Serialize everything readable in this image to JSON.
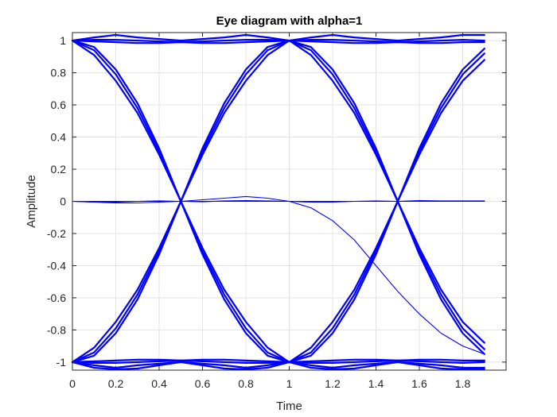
{
  "chart_data": {
    "type": "line",
    "title": "Eye diagram with alpha=1",
    "xlabel": "Time",
    "ylabel": "Amplitude",
    "xlim": [
      0,
      2
    ],
    "ylim": [
      -1.05,
      1.05
    ],
    "grid": true,
    "legend": "none",
    "x_ticks": [
      0,
      0.2,
      0.4,
      0.6,
      0.8,
      1,
      1.2,
      1.4,
      1.6,
      1.8
    ],
    "x_tick_labels": [
      "0",
      "0.2",
      "0.4",
      "0.6",
      "0.8",
      "1",
      "1.2",
      "1.4",
      "1.6",
      "1.8"
    ],
    "y_ticks": [
      -1,
      -0.8,
      -0.6,
      -0.4,
      -0.2,
      0,
      0.2,
      0.4,
      0.6,
      0.8,
      1
    ],
    "y_tick_labels": [
      "-1",
      "-0.8",
      "-0.6",
      "-0.4",
      "-0.2",
      "0",
      "0.2",
      "0.4",
      "0.6",
      "0.8",
      "1"
    ],
    "trace_color": "#0000ff",
    "x": [
      0,
      0.1,
      0.2,
      0.3,
      0.4,
      0.5,
      0.6,
      0.7,
      0.8,
      0.9,
      1.0,
      1.1,
      1.2,
      1.3,
      1.4,
      1.5,
      1.6,
      1.7,
      1.8,
      1.9
    ],
    "series": [
      {
        "values": [
          1,
          0.96,
          0.82,
          0.61,
          0.33,
          0,
          -0.33,
          -0.61,
          -0.82,
          -0.96,
          -1,
          -0.96,
          -0.82,
          -0.61,
          -0.33,
          0,
          0.33,
          0.61,
          0.82,
          0.95
        ]
      },
      {
        "values": [
          1,
          0.94,
          0.79,
          0.58,
          0.31,
          0,
          -0.31,
          -0.58,
          -0.79,
          -0.94,
          -1,
          -0.94,
          -0.79,
          -0.58,
          -0.31,
          0,
          0.31,
          0.58,
          0.79,
          0.92
        ]
      },
      {
        "values": [
          1,
          0.91,
          0.75,
          0.55,
          0.29,
          0,
          -0.29,
          -0.55,
          -0.75,
          -0.91,
          -1,
          -0.91,
          -0.75,
          -0.55,
          -0.29,
          0,
          0.29,
          0.55,
          0.75,
          0.88
        ]
      },
      {
        "values": [
          -1,
          -0.96,
          -0.82,
          -0.61,
          -0.33,
          0,
          0.33,
          0.61,
          0.82,
          0.96,
          1,
          0.96,
          0.82,
          0.61,
          0.33,
          0,
          -0.33,
          -0.61,
          -0.82,
          -0.95
        ]
      },
      {
        "values": [
          -1,
          -0.94,
          -0.79,
          -0.58,
          -0.31,
          0,
          0.31,
          0.58,
          0.79,
          0.94,
          1,
          0.94,
          0.79,
          0.58,
          0.31,
          0,
          -0.31,
          -0.58,
          -0.79,
          -0.92
        ]
      },
      {
        "values": [
          -1,
          -0.91,
          -0.75,
          -0.55,
          -0.29,
          0,
          0.29,
          0.55,
          0.75,
          0.91,
          1,
          0.91,
          0.75,
          0.55,
          0.29,
          0,
          -0.29,
          -0.55,
          -0.75,
          -0.88
        ]
      },
      {
        "values": [
          1,
          1.02,
          1.035,
          1.02,
          1.01,
          1,
          1.01,
          1.02,
          1.035,
          1.02,
          1,
          1.02,
          1.035,
          1.02,
          1.01,
          1,
          1.01,
          1.02,
          1.035,
          1.035
        ]
      },
      {
        "values": [
          1,
          1.005,
          1.005,
          1.0,
          0.995,
          0.99,
          0.995,
          1.0,
          1.005,
          1.005,
          1,
          1.005,
          1.005,
          1.0,
          0.995,
          0.99,
          0.995,
          1.0,
          1.005,
          1.0
        ]
      },
      {
        "values": [
          1,
          0.995,
          0.99,
          0.985,
          0.985,
          0.99,
          0.985,
          0.985,
          0.99,
          0.995,
          1,
          0.995,
          0.99,
          0.985,
          0.985,
          0.99,
          0.985,
          0.985,
          0.99,
          0.99
        ]
      },
      {
        "values": [
          -1,
          -1.02,
          -1.035,
          -1.02,
          -1.01,
          -1,
          -1.01,
          -1.02,
          -1.035,
          -1.02,
          -1,
          -1.02,
          -1.035,
          -1.02,
          -1.01,
          -1,
          -1.01,
          -1.02,
          -1.035,
          -1.035
        ]
      },
      {
        "values": [
          -1,
          -1.005,
          -1.005,
          -1.0,
          -0.995,
          -0.99,
          -0.995,
          -1.0,
          -1.005,
          -1.005,
          -1,
          -1.005,
          -1.005,
          -1.0,
          -0.995,
          -0.99,
          -0.995,
          -1.0,
          -1.005,
          -1.0
        ]
      },
      {
        "values": [
          -1,
          -0.995,
          -0.99,
          -0.985,
          -0.985,
          -0.99,
          -0.985,
          -0.985,
          -0.99,
          -0.995,
          -1,
          -0.995,
          -0.99,
          -0.985,
          -0.985,
          -0.99,
          -0.985,
          -0.985,
          -0.99,
          -0.99
        ]
      },
      {
        "values": [
          -1,
          -1.035,
          -1.045,
          -1.04,
          -1.02,
          -1,
          -1.02,
          -1.04,
          -1.045,
          -1.035,
          -1,
          -1.035,
          -1.045,
          -1.04,
          -1.02,
          -1,
          -1.02,
          -1.04,
          -1.045,
          -1.045
        ]
      },
      {
        "values": [
          0,
          -0.005,
          -0.01,
          -0.01,
          -0.005,
          0,
          0.01,
          0.02,
          0.03,
          0.02,
          0,
          -0.04,
          -0.12,
          -0.24,
          -0.4,
          -0.56,
          -0.7,
          -0.82,
          -0.9,
          -0.95
        ]
      },
      {
        "values": [
          0,
          0,
          0,
          0,
          0,
          0,
          0,
          0,
          0,
          0,
          0,
          0,
          0,
          0,
          0,
          0,
          0,
          0,
          0,
          0
        ]
      },
      {
        "values": [
          0,
          -0.005,
          -0.005,
          0,
          0.003,
          0,
          -0.003,
          0.003,
          0.005,
          0.003,
          0,
          -0.005,
          -0.005,
          0,
          0.003,
          0,
          0.005,
          0.003,
          0.003,
          0.003
        ]
      }
    ]
  }
}
